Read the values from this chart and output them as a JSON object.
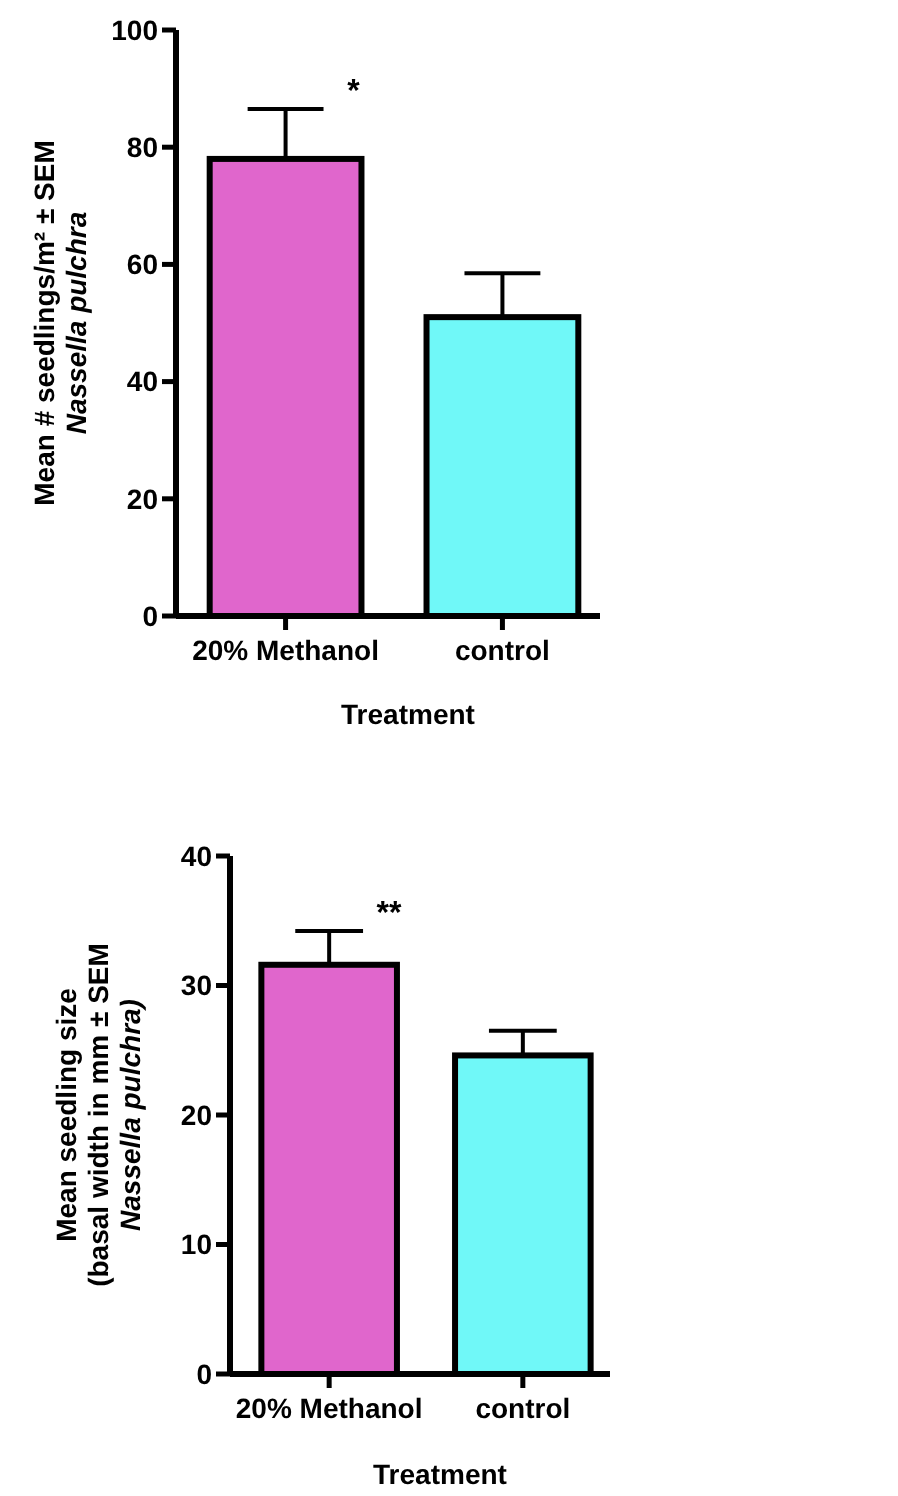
{
  "chart_data": [
    {
      "type": "bar",
      "ylabel": "Mean # seedlings/m² ± SEM\nNassella pulchra",
      "xlabel": "Treatment",
      "categories": [
        "20% Methanol",
        "control"
      ],
      "values": [
        78,
        51
      ],
      "errors": [
        8.5,
        7.5
      ],
      "colors": [
        "#e066cc",
        "#70f8f8"
      ],
      "ylim": [
        0,
        100
      ],
      "yticks": [
        0,
        20,
        40,
        60,
        80,
        100
      ],
      "annotations": [
        "*"
      ]
    },
    {
      "type": "bar",
      "ylabel": "Mean seedling size\n(basal width in mm ± SEM\nNassella pulchra)",
      "xlabel": "Treatment",
      "categories": [
        "20% Methanol",
        "control"
      ],
      "values": [
        31.6,
        24.6
      ],
      "errors": [
        2.6,
        1.9
      ],
      "colors": [
        "#e066cc",
        "#70f8f8"
      ],
      "ylim": [
        0,
        40
      ],
      "yticks": [
        0,
        10,
        20,
        30,
        40
      ],
      "annotations": [
        "**"
      ]
    }
  ]
}
